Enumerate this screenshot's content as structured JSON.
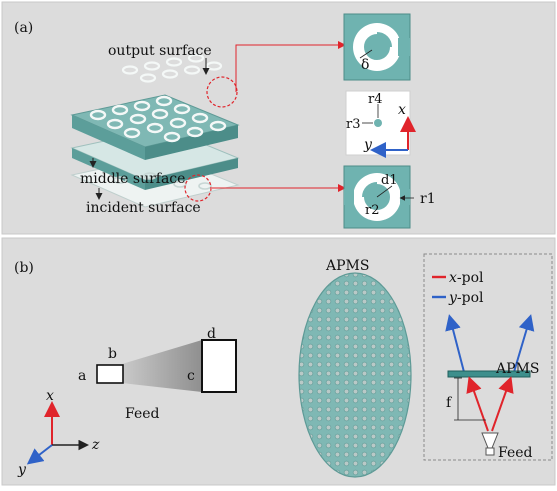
{
  "panel_a": {
    "tag": "(a)",
    "layer_labels": {
      "output": "output surface",
      "middle": "middle surface",
      "incident": "incident surface"
    },
    "unit_cell_labels": {
      "delta": "δ",
      "r4": "r4",
      "r3": "r3",
      "x": "x",
      "y": "y",
      "d1": "d1",
      "r1": "r1",
      "r2": "r2"
    }
  },
  "panel_b": {
    "tag": "(b)",
    "horn_labels": {
      "a": "a",
      "b": "b",
      "c": "c",
      "d": "d",
      "feed": "Feed"
    },
    "axis_labels": {
      "x": "x",
      "y": "y",
      "z": "z"
    },
    "apms_title": "APMS",
    "legend": [
      {
        "italic": "x",
        "suffix": "-pol",
        "color": "#e0242b"
      },
      {
        "italic": "y",
        "suffix": "-pol",
        "color": "#2f62c8"
      }
    ],
    "system": {
      "apms": "APMS",
      "f": "f",
      "feed": "Feed"
    }
  },
  "colors": {
    "panel_bg": "#dcdcdc",
    "teal": "#6fb3b0",
    "teal_dark": "#3d8f8c",
    "red": "#e0242b",
    "blue": "#2f62c8"
  }
}
